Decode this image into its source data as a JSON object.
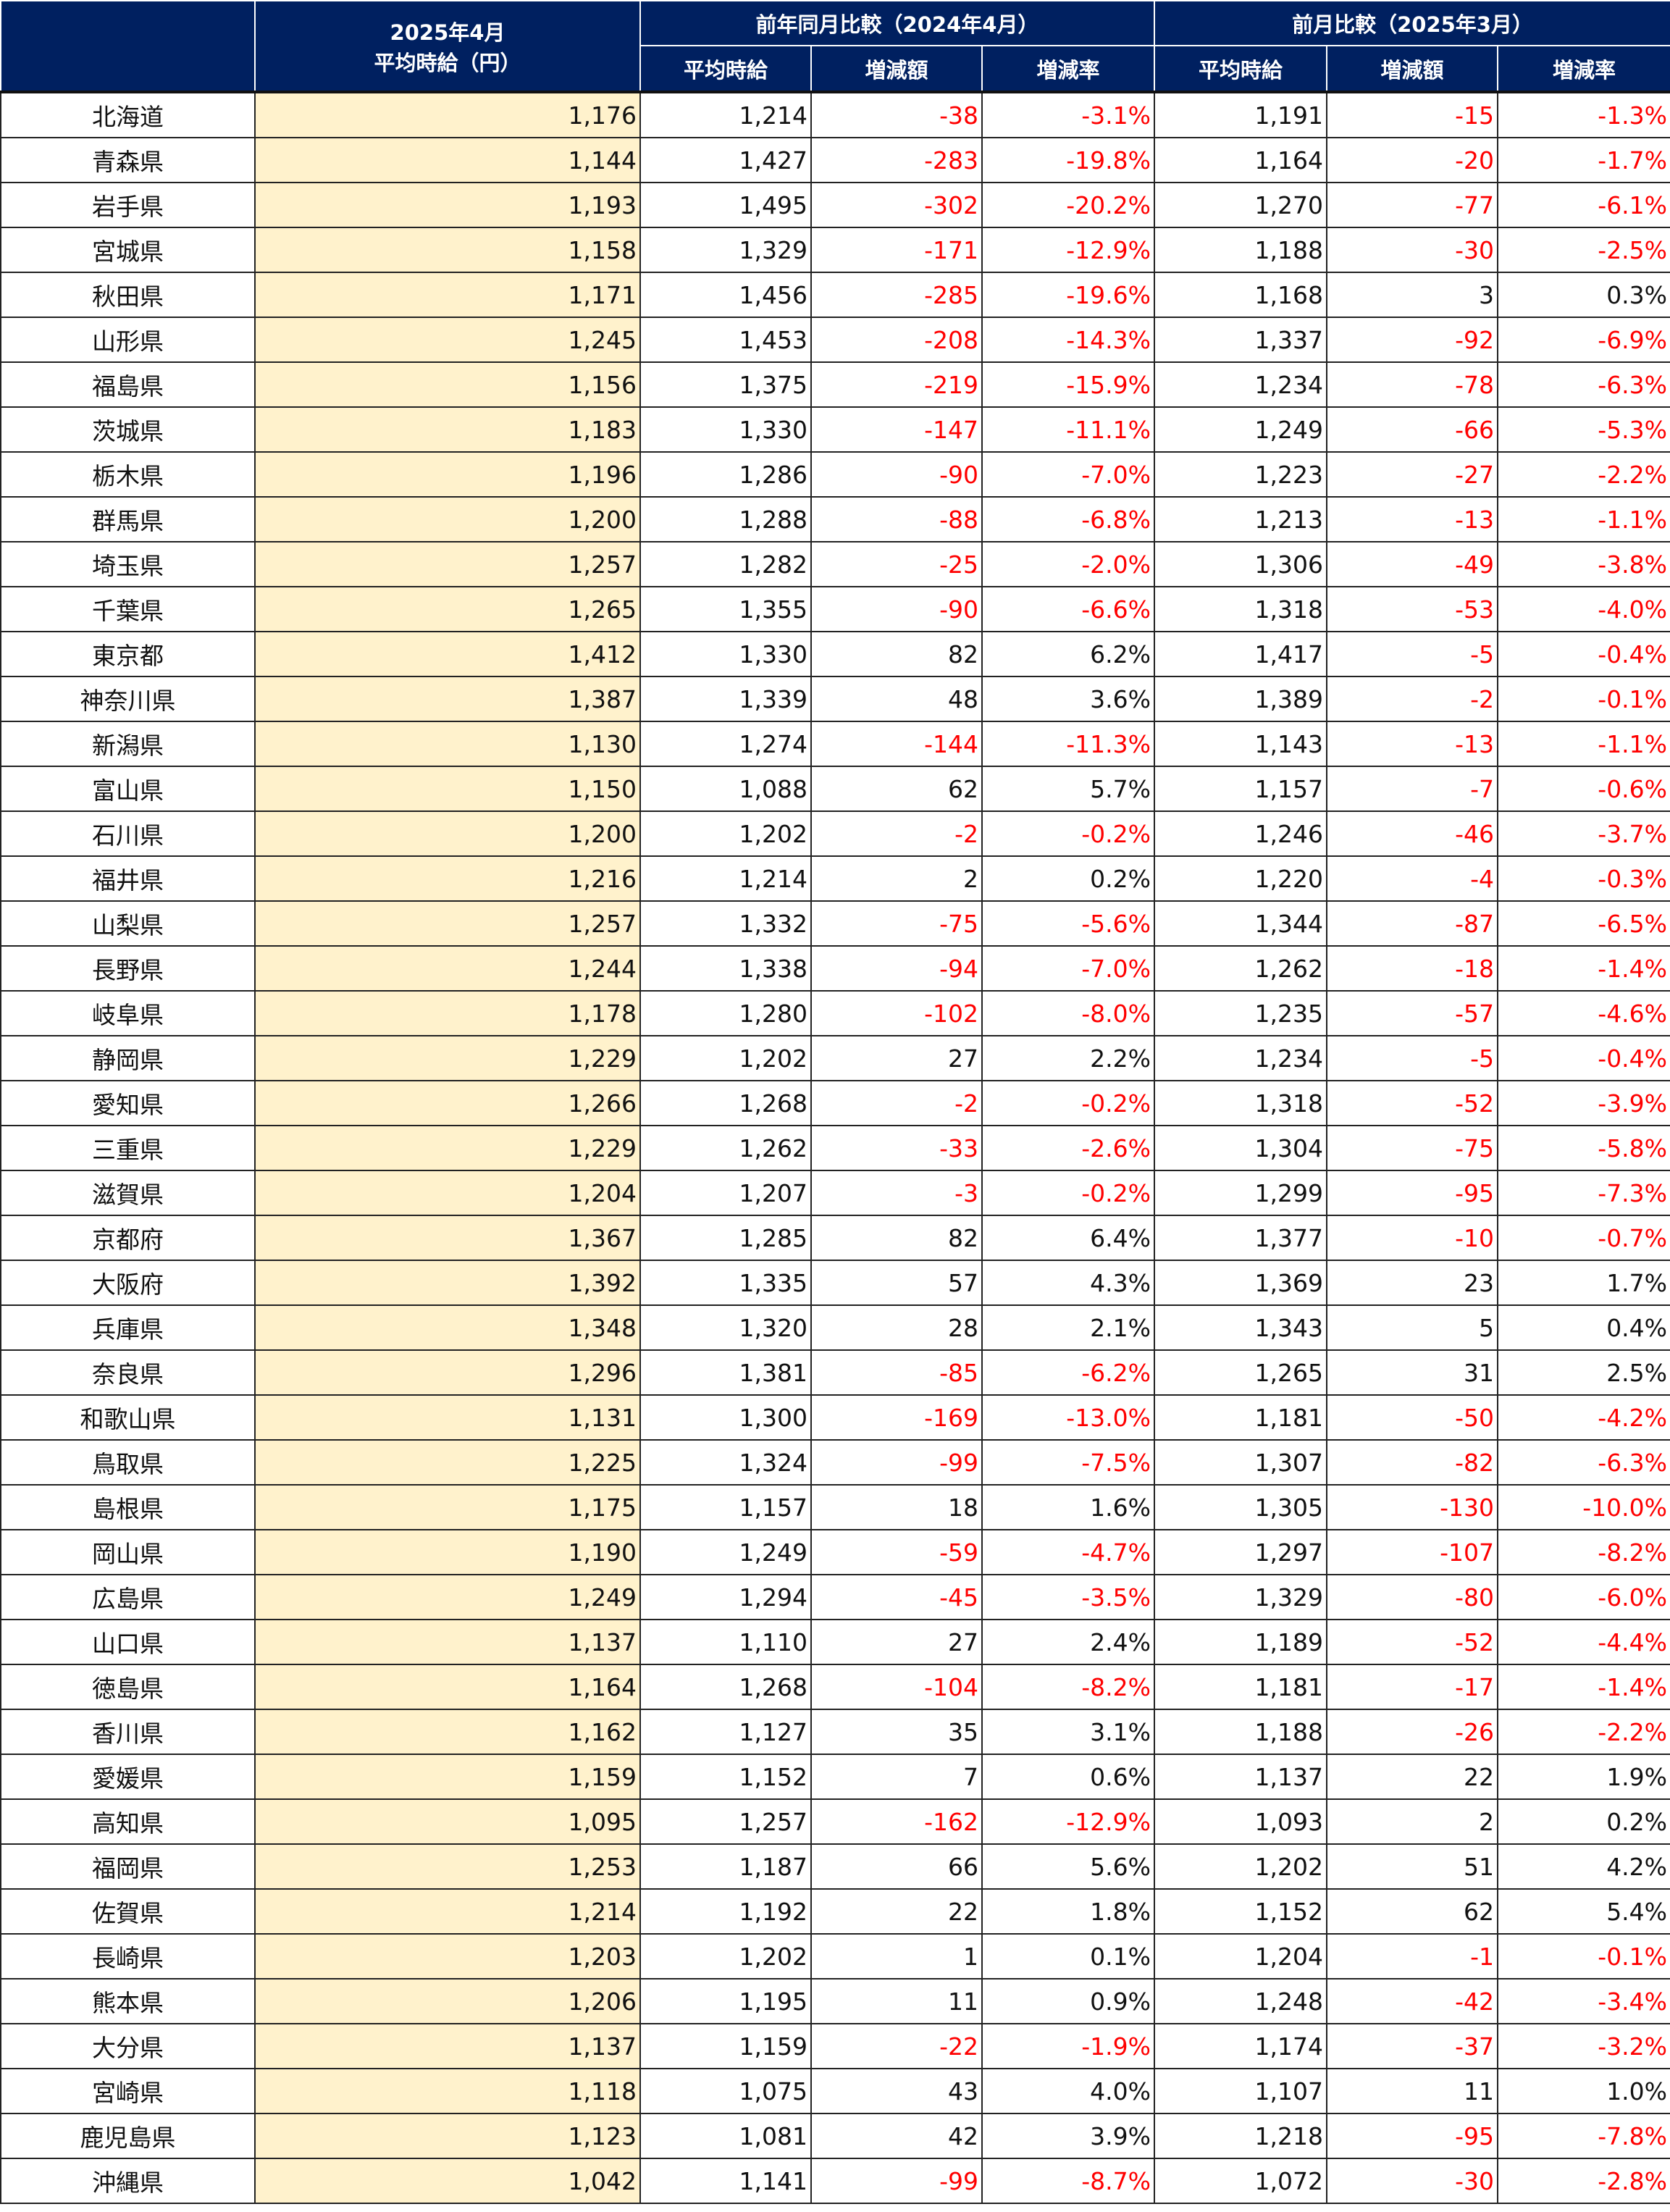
{
  "colors": {
    "header_bg": "#002060",
    "highlight": "#FFF2CC",
    "negative": "#FF0000"
  },
  "header": {
    "current_month": "2025年4月",
    "current_label": "平均時給（円）",
    "yoy_group": "前年同月比較（2024年4月）",
    "mom_group": "前月比較（2025年3月）",
    "sub": [
      "平均時給",
      "増減額",
      "増減率",
      "平均時給",
      "増減額",
      "増減率"
    ]
  },
  "rows": [
    [
      "北海道",
      "1,176",
      "1,214",
      "-38",
      "-3.1%",
      "1,191",
      "-15",
      "-1.3%"
    ],
    [
      "青森県",
      "1,144",
      "1,427",
      "-283",
      "-19.8%",
      "1,164",
      "-20",
      "-1.7%"
    ],
    [
      "岩手県",
      "1,193",
      "1,495",
      "-302",
      "-20.2%",
      "1,270",
      "-77",
      "-6.1%"
    ],
    [
      "宮城県",
      "1,158",
      "1,329",
      "-171",
      "-12.9%",
      "1,188",
      "-30",
      "-2.5%"
    ],
    [
      "秋田県",
      "1,171",
      "1,456",
      "-285",
      "-19.6%",
      "1,168",
      "3",
      "0.3%"
    ],
    [
      "山形県",
      "1,245",
      "1,453",
      "-208",
      "-14.3%",
      "1,337",
      "-92",
      "-6.9%"
    ],
    [
      "福島県",
      "1,156",
      "1,375",
      "-219",
      "-15.9%",
      "1,234",
      "-78",
      "-6.3%"
    ],
    [
      "茨城県",
      "1,183",
      "1,330",
      "-147",
      "-11.1%",
      "1,249",
      "-66",
      "-5.3%"
    ],
    [
      "栃木県",
      "1,196",
      "1,286",
      "-90",
      "-7.0%",
      "1,223",
      "-27",
      "-2.2%"
    ],
    [
      "群馬県",
      "1,200",
      "1,288",
      "-88",
      "-6.8%",
      "1,213",
      "-13",
      "-1.1%"
    ],
    [
      "埼玉県",
      "1,257",
      "1,282",
      "-25",
      "-2.0%",
      "1,306",
      "-49",
      "-3.8%"
    ],
    [
      "千葉県",
      "1,265",
      "1,355",
      "-90",
      "-6.6%",
      "1,318",
      "-53",
      "-4.0%"
    ],
    [
      "東京都",
      "1,412",
      "1,330",
      "82",
      "6.2%",
      "1,417",
      "-5",
      "-0.4%"
    ],
    [
      "神奈川県",
      "1,387",
      "1,339",
      "48",
      "3.6%",
      "1,389",
      "-2",
      "-0.1%"
    ],
    [
      "新潟県",
      "1,130",
      "1,274",
      "-144",
      "-11.3%",
      "1,143",
      "-13",
      "-1.1%"
    ],
    [
      "富山県",
      "1,150",
      "1,088",
      "62",
      "5.7%",
      "1,157",
      "-7",
      "-0.6%"
    ],
    [
      "石川県",
      "1,200",
      "1,202",
      "-2",
      "-0.2%",
      "1,246",
      "-46",
      "-3.7%"
    ],
    [
      "福井県",
      "1,216",
      "1,214",
      "2",
      "0.2%",
      "1,220",
      "-4",
      "-0.3%"
    ],
    [
      "山梨県",
      "1,257",
      "1,332",
      "-75",
      "-5.6%",
      "1,344",
      "-87",
      "-6.5%"
    ],
    [
      "長野県",
      "1,244",
      "1,338",
      "-94",
      "-7.0%",
      "1,262",
      "-18",
      "-1.4%"
    ],
    [
      "岐阜県",
      "1,178",
      "1,280",
      "-102",
      "-8.0%",
      "1,235",
      "-57",
      "-4.6%"
    ],
    [
      "静岡県",
      "1,229",
      "1,202",
      "27",
      "2.2%",
      "1,234",
      "-5",
      "-0.4%"
    ],
    [
      "愛知県",
      "1,266",
      "1,268",
      "-2",
      "-0.2%",
      "1,318",
      "-52",
      "-3.9%"
    ],
    [
      "三重県",
      "1,229",
      "1,262",
      "-33",
      "-2.6%",
      "1,304",
      "-75",
      "-5.8%"
    ],
    [
      "滋賀県",
      "1,204",
      "1,207",
      "-3",
      "-0.2%",
      "1,299",
      "-95",
      "-7.3%"
    ],
    [
      "京都府",
      "1,367",
      "1,285",
      "82",
      "6.4%",
      "1,377",
      "-10",
      "-0.7%"
    ],
    [
      "大阪府",
      "1,392",
      "1,335",
      "57",
      "4.3%",
      "1,369",
      "23",
      "1.7%"
    ],
    [
      "兵庫県",
      "1,348",
      "1,320",
      "28",
      "2.1%",
      "1,343",
      "5",
      "0.4%"
    ],
    [
      "奈良県",
      "1,296",
      "1,381",
      "-85",
      "-6.2%",
      "1,265",
      "31",
      "2.5%"
    ],
    [
      "和歌山県",
      "1,131",
      "1,300",
      "-169",
      "-13.0%",
      "1,181",
      "-50",
      "-4.2%"
    ],
    [
      "鳥取県",
      "1,225",
      "1,324",
      "-99",
      "-7.5%",
      "1,307",
      "-82",
      "-6.3%"
    ],
    [
      "島根県",
      "1,175",
      "1,157",
      "18",
      "1.6%",
      "1,305",
      "-130",
      "-10.0%"
    ],
    [
      "岡山県",
      "1,190",
      "1,249",
      "-59",
      "-4.7%",
      "1,297",
      "-107",
      "-8.2%"
    ],
    [
      "広島県",
      "1,249",
      "1,294",
      "-45",
      "-3.5%",
      "1,329",
      "-80",
      "-6.0%"
    ],
    [
      "山口県",
      "1,137",
      "1,110",
      "27",
      "2.4%",
      "1,189",
      "-52",
      "-4.4%"
    ],
    [
      "徳島県",
      "1,164",
      "1,268",
      "-104",
      "-8.2%",
      "1,181",
      "-17",
      "-1.4%"
    ],
    [
      "香川県",
      "1,162",
      "1,127",
      "35",
      "3.1%",
      "1,188",
      "-26",
      "-2.2%"
    ],
    [
      "愛媛県",
      "1,159",
      "1,152",
      "7",
      "0.6%",
      "1,137",
      "22",
      "1.9%"
    ],
    [
      "高知県",
      "1,095",
      "1,257",
      "-162",
      "-12.9%",
      "1,093",
      "2",
      "0.2%"
    ],
    [
      "福岡県",
      "1,253",
      "1,187",
      "66",
      "5.6%",
      "1,202",
      "51",
      "4.2%"
    ],
    [
      "佐賀県",
      "1,214",
      "1,192",
      "22",
      "1.8%",
      "1,152",
      "62",
      "5.4%"
    ],
    [
      "長崎県",
      "1,203",
      "1,202",
      "1",
      "0.1%",
      "1,204",
      "-1",
      "-0.1%"
    ],
    [
      "熊本県",
      "1,206",
      "1,195",
      "11",
      "0.9%",
      "1,248",
      "-42",
      "-3.4%"
    ],
    [
      "大分県",
      "1,137",
      "1,159",
      "-22",
      "-1.9%",
      "1,174",
      "-37",
      "-3.2%"
    ],
    [
      "宮崎県",
      "1,118",
      "1,075",
      "43",
      "4.0%",
      "1,107",
      "11",
      "1.0%"
    ],
    [
      "鹿児島県",
      "1,123",
      "1,081",
      "42",
      "3.9%",
      "1,218",
      "-95",
      "-7.8%"
    ],
    [
      "沖縄県",
      "1,042",
      "1,141",
      "-99",
      "-8.7%",
      "1,072",
      "-30",
      "-2.8%"
    ]
  ]
}
